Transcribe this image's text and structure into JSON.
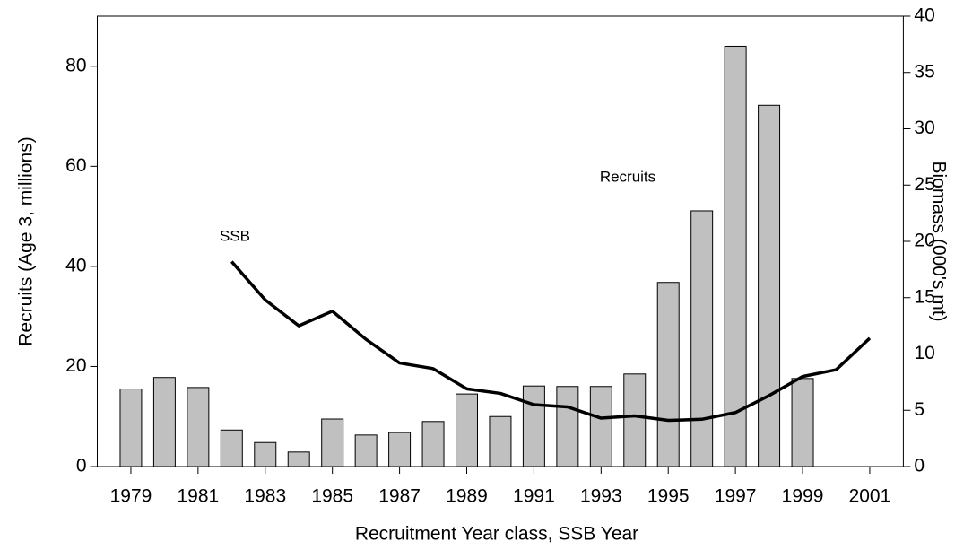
{
  "chart_data": {
    "type": "bar_line",
    "x": [
      1979,
      1980,
      1981,
      1982,
      1983,
      1984,
      1985,
      1986,
      1987,
      1988,
      1989,
      1990,
      1991,
      1992,
      1993,
      1994,
      1995,
      1996,
      1997,
      1998,
      1999,
      2000,
      2001
    ],
    "xlim": [
      1978,
      2002
    ],
    "xticks": [
      1979,
      1981,
      1983,
      1985,
      1987,
      1989,
      1991,
      1993,
      1995,
      1997,
      1999,
      2001
    ],
    "xlabel": "Recruitment Year class, SSB Year",
    "ylabel": "Recruits (Age 3, millions)",
    "y2label": "Biomass (000's mt)",
    "ylim": [
      0,
      90
    ],
    "yticks": [
      0,
      20,
      40,
      60,
      80
    ],
    "y2lim": [
      0,
      40
    ],
    "y2ticks": [
      0,
      5,
      10,
      15,
      20,
      25,
      30,
      35,
      40
    ],
    "grid": false,
    "series": [
      {
        "name": "Recruits",
        "type": "bar",
        "color": "#c0c0c0",
        "values": [
          15.5,
          17.8,
          15.8,
          7.3,
          4.8,
          2.9,
          9.5,
          6.3,
          6.8,
          9.0,
          14.5,
          10.0,
          16.1,
          16.0,
          16.0,
          18.5,
          36.8,
          51.1,
          84.0,
          72.2,
          17.6,
          null,
          null
        ]
      },
      {
        "name": "SSB",
        "type": "line",
        "axis": "y2",
        "color": "#000000",
        "values": [
          null,
          null,
          null,
          18.2,
          14.8,
          12.5,
          13.8,
          11.3,
          9.2,
          8.7,
          6.9,
          6.5,
          5.5,
          5.3,
          4.3,
          4.5,
          4.1,
          4.2,
          4.8,
          6.3,
          8.0,
          8.6,
          11.4
        ]
      }
    ]
  }
}
